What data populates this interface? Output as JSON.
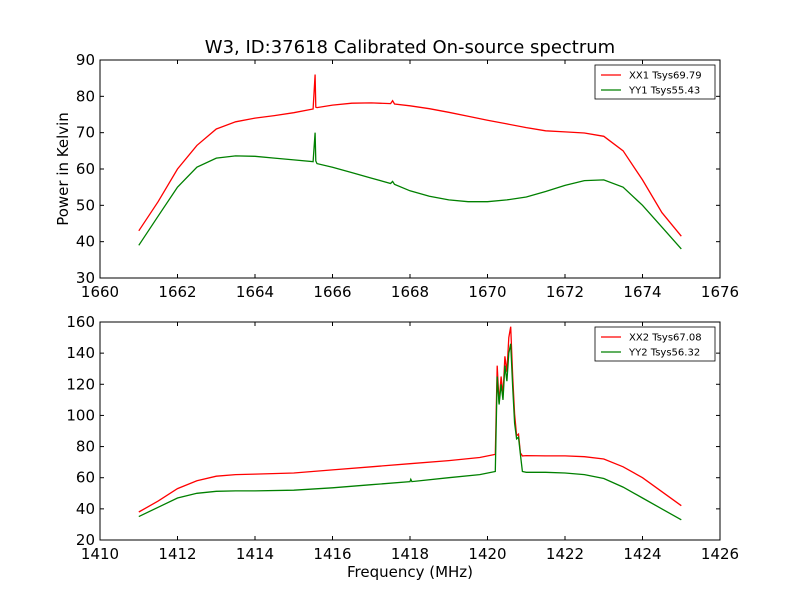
{
  "chart_data": [
    {
      "type": "line",
      "title": "W3, ID:37618 Calibrated On-source spectrum",
      "xlabel": "",
      "ylabel": "Power in Kelvin",
      "xlim": [
        1660,
        1676
      ],
      "ylim": [
        30,
        90
      ],
      "xticks": [
        1660,
        1662,
        1664,
        1666,
        1668,
        1670,
        1672,
        1674,
        1676
      ],
      "yticks": [
        30,
        40,
        50,
        60,
        70,
        80,
        90
      ],
      "legend": "top-right",
      "grid": false,
      "series": [
        {
          "name": "XX1 Tsys69.79",
          "color": "#ff0000",
          "x": [
            1661.0,
            1661.5,
            1662.0,
            1662.5,
            1663.0,
            1663.5,
            1664.0,
            1664.5,
            1665.0,
            1665.5,
            1665.55,
            1665.57,
            1665.6,
            1666.0,
            1666.5,
            1667.0,
            1667.5,
            1667.55,
            1667.6,
            1668.0,
            1668.5,
            1669.0,
            1669.5,
            1670.0,
            1670.5,
            1671.0,
            1671.5,
            1672.0,
            1672.5,
            1673.0,
            1673.5,
            1674.0,
            1674.5,
            1675.0
          ],
          "y": [
            43,
            51,
            60,
            66.5,
            71,
            73,
            74,
            74.7,
            75.5,
            76.5,
            86,
            77,
            76.9,
            77.6,
            78.1,
            78.2,
            78,
            78.8,
            77.9,
            77.4,
            76.6,
            75.6,
            74.5,
            73.4,
            72.4,
            71.4,
            70.5,
            70.2,
            69.9,
            69,
            65,
            57,
            48,
            41.5
          ]
        },
        {
          "name": "YY1 Tsys55.43",
          "color": "#008000",
          "x": [
            1661.0,
            1661.5,
            1662.0,
            1662.5,
            1663.0,
            1663.5,
            1664.0,
            1664.5,
            1665.0,
            1665.5,
            1665.55,
            1665.57,
            1665.6,
            1666.0,
            1666.5,
            1667.0,
            1667.5,
            1667.55,
            1667.6,
            1668.0,
            1668.5,
            1669.0,
            1669.5,
            1670.0,
            1670.5,
            1671.0,
            1671.5,
            1672.0,
            1672.5,
            1673.0,
            1673.5,
            1674.0,
            1674.5,
            1675.0
          ],
          "y": [
            39,
            47,
            55,
            60.5,
            63,
            63.6,
            63.5,
            63,
            62.5,
            62,
            70,
            62.2,
            61.5,
            60.5,
            59,
            57.5,
            56,
            56.6,
            55.8,
            54,
            52.5,
            51.5,
            51,
            51,
            51.5,
            52.3,
            53.8,
            55.5,
            56.8,
            57,
            55,
            50,
            44,
            38
          ]
        }
      ]
    },
    {
      "type": "line",
      "title": "",
      "xlabel": "Frequency (MHz)",
      "ylabel": "",
      "xlim": [
        1410,
        1426
      ],
      "ylim": [
        20,
        160
      ],
      "xticks": [
        1410,
        1412,
        1414,
        1416,
        1418,
        1420,
        1422,
        1424,
        1426
      ],
      "yticks": [
        20,
        40,
        60,
        80,
        100,
        120,
        140,
        160
      ],
      "legend": "top-right",
      "grid": false,
      "series": [
        {
          "name": "XX2 Tsys67.08",
          "color": "#ff0000",
          "x": [
            1411.0,
            1411.5,
            1412.0,
            1412.5,
            1413.0,
            1413.5,
            1414.0,
            1415.0,
            1416.0,
            1417.0,
            1418.0,
            1419.0,
            1419.8,
            1420.2,
            1420.25,
            1420.3,
            1420.35,
            1420.4,
            1420.45,
            1420.5,
            1420.55,
            1420.6,
            1420.65,
            1420.7,
            1420.75,
            1420.8,
            1420.85,
            1420.9,
            1421.0,
            1421.5,
            1422.0,
            1422.5,
            1423.0,
            1423.5,
            1424.0,
            1424.5,
            1425.0
          ],
          "y": [
            38,
            45,
            53,
            58,
            61,
            62,
            62.3,
            63,
            65,
            67,
            69,
            71,
            73,
            75,
            132,
            108,
            125,
            113,
            138,
            128,
            150,
            157,
            125,
            101,
            87,
            88,
            76,
            74,
            74.2,
            74,
            74,
            73.5,
            72,
            67,
            60,
            51,
            42
          ]
        },
        {
          "name": "YY2 Tsys56.32",
          "color": "#008000",
          "x": [
            1411.0,
            1411.5,
            1412.0,
            1412.5,
            1413.0,
            1413.5,
            1414.0,
            1415.0,
            1416.0,
            1417.0,
            1418.0,
            1418.02,
            1418.05,
            1419.0,
            1419.8,
            1420.2,
            1420.25,
            1420.3,
            1420.35,
            1420.4,
            1420.45,
            1420.5,
            1420.55,
            1420.6,
            1420.65,
            1420.7,
            1420.75,
            1420.8,
            1420.85,
            1420.9,
            1421.0,
            1421.5,
            1422.0,
            1422.5,
            1423.0,
            1423.5,
            1424.0,
            1424.5,
            1425.0
          ],
          "y": [
            35,
            41,
            47,
            50,
            51.3,
            51.5,
            51.5,
            52,
            53.5,
            55.5,
            57.5,
            59,
            57.5,
            60,
            62,
            64,
            125,
            107,
            120,
            110,
            132,
            122,
            140,
            146,
            118,
            95,
            85,
            86,
            75,
            64,
            63.5,
            63.5,
            63,
            62,
            59.5,
            54,
            47,
            40,
            33
          ]
        }
      ]
    }
  ]
}
